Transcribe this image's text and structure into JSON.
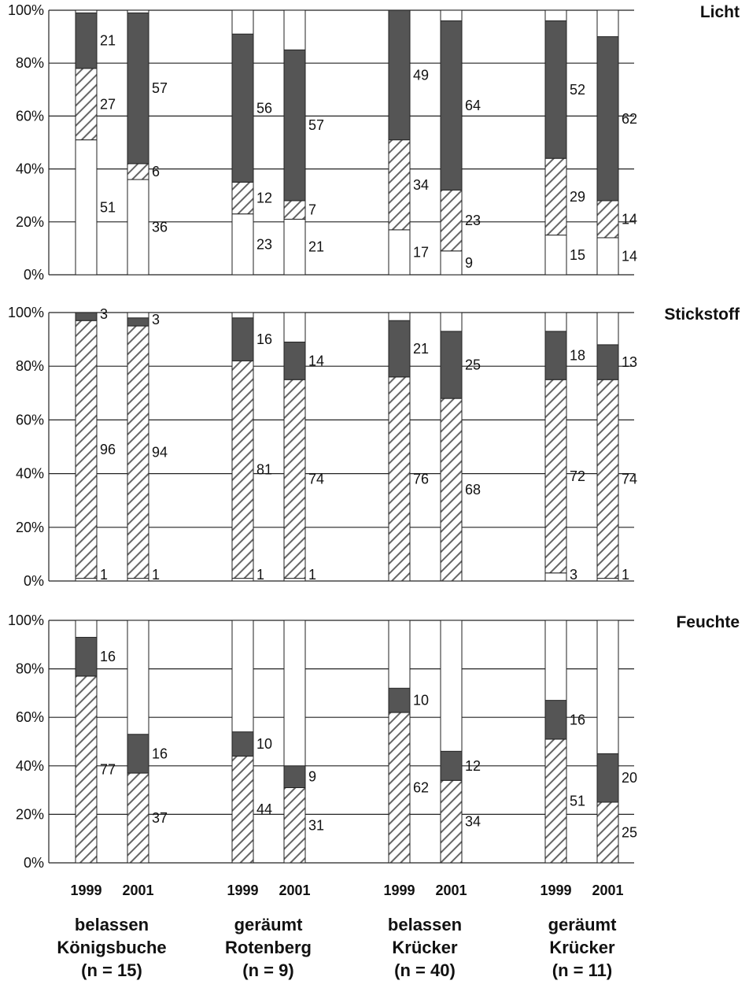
{
  "legend_patterns": {
    "white": "#ffffff",
    "hatched": "diagonal-hatch",
    "dark": "#555555"
  },
  "groups": [
    {
      "line1": "belassen",
      "line2": "Königsbuche",
      "line3": "(n = 15)"
    },
    {
      "line1": "geräumt",
      "line2": "Rotenberg",
      "line3": "(n = 9)"
    },
    {
      "line1": "belassen",
      "line2": "Krücker",
      "line3": "(n = 40)"
    },
    {
      "line1": "geräumt",
      "line2": "Krücker",
      "line3": "(n = 11)"
    }
  ],
  "chart_data": [
    {
      "type": "bar",
      "stacked": true,
      "title": "Licht",
      "ylim": [
        0,
        100
      ],
      "yticks": [
        "0%",
        "20%",
        "40%",
        "60%",
        "80%",
        "100%"
      ],
      "categories": [
        "1999",
        "2001",
        "1999",
        "2001",
        "1999",
        "2001",
        "1999",
        "2001"
      ],
      "bars": [
        {
          "segments": [
            51,
            27,
            21
          ],
          "labels": [
            "51",
            "27",
            "21"
          ]
        },
        {
          "segments": [
            36,
            6,
            57
          ],
          "labels": [
            "36",
            "6",
            "57"
          ]
        },
        {
          "segments": [
            23,
            12,
            56
          ],
          "labels": [
            "23",
            "12",
            "56"
          ]
        },
        {
          "segments": [
            21,
            7,
            57
          ],
          "labels": [
            "21",
            "7",
            "57"
          ]
        },
        {
          "segments": [
            17,
            34,
            49
          ],
          "labels": [
            "17",
            "34",
            "49"
          ]
        },
        {
          "segments": [
            9,
            23,
            64
          ],
          "labels": [
            "9",
            "23",
            "64"
          ]
        },
        {
          "segments": [
            15,
            29,
            52
          ],
          "labels": [
            "15",
            "29",
            "52"
          ]
        },
        {
          "segments": [
            14,
            14,
            62
          ],
          "labels": [
            "14",
            "14",
            "62"
          ]
        }
      ]
    },
    {
      "type": "bar",
      "stacked": true,
      "title": "Stickstoff",
      "ylim": [
        0,
        100
      ],
      "yticks": [
        "0%",
        "20%",
        "40%",
        "60%",
        "80%",
        "100%"
      ],
      "categories": [
        "1999",
        "2001",
        "1999",
        "2001",
        "1999",
        "2001",
        "1999",
        "2001"
      ],
      "bars": [
        {
          "segments": [
            1,
            96,
            3
          ],
          "labels": [
            "1",
            "96",
            "3"
          ]
        },
        {
          "segments": [
            1,
            94,
            3
          ],
          "labels": [
            "1",
            "94",
            "3"
          ]
        },
        {
          "segments": [
            1,
            81,
            16
          ],
          "labels": [
            "1",
            "81",
            "16"
          ]
        },
        {
          "segments": [
            1,
            74,
            14
          ],
          "labels": [
            "1",
            "74",
            "14"
          ]
        },
        {
          "segments": [
            0,
            76,
            21
          ],
          "labels": [
            "",
            "76",
            "21"
          ]
        },
        {
          "segments": [
            0,
            68,
            25
          ],
          "labels": [
            "",
            "68",
            "25"
          ]
        },
        {
          "segments": [
            3,
            72,
            18
          ],
          "labels": [
            "3",
            "72",
            "18"
          ]
        },
        {
          "segments": [
            1,
            74,
            13
          ],
          "labels": [
            "1",
            "74",
            "13"
          ]
        }
      ]
    },
    {
      "type": "bar",
      "stacked": true,
      "title": "Feuchte",
      "ylim": [
        0,
        100
      ],
      "yticks": [
        "0%",
        "20%",
        "40%",
        "60%",
        "80%",
        "100%"
      ],
      "categories": [
        "1999",
        "2001",
        "1999",
        "2001",
        "1999",
        "2001",
        "1999",
        "2001"
      ],
      "bars": [
        {
          "segments": [
            0,
            77,
            16
          ],
          "labels": [
            "",
            "77",
            "16"
          ]
        },
        {
          "segments": [
            0,
            37,
            16
          ],
          "labels": [
            "",
            "37",
            "16"
          ]
        },
        {
          "segments": [
            0,
            44,
            10
          ],
          "labels": [
            "",
            "44",
            "10"
          ]
        },
        {
          "segments": [
            0,
            31,
            9
          ],
          "labels": [
            "",
            "31",
            "9"
          ]
        },
        {
          "segments": [
            0,
            62,
            10
          ],
          "labels": [
            "",
            "62",
            "10"
          ]
        },
        {
          "segments": [
            0,
            34,
            12
          ],
          "labels": [
            "",
            "34",
            "12"
          ]
        },
        {
          "segments": [
            0,
            51,
            16
          ],
          "labels": [
            "",
            "51",
            "16"
          ]
        },
        {
          "segments": [
            0,
            25,
            20
          ],
          "labels": [
            "",
            "25",
            "20"
          ]
        }
      ]
    }
  ]
}
